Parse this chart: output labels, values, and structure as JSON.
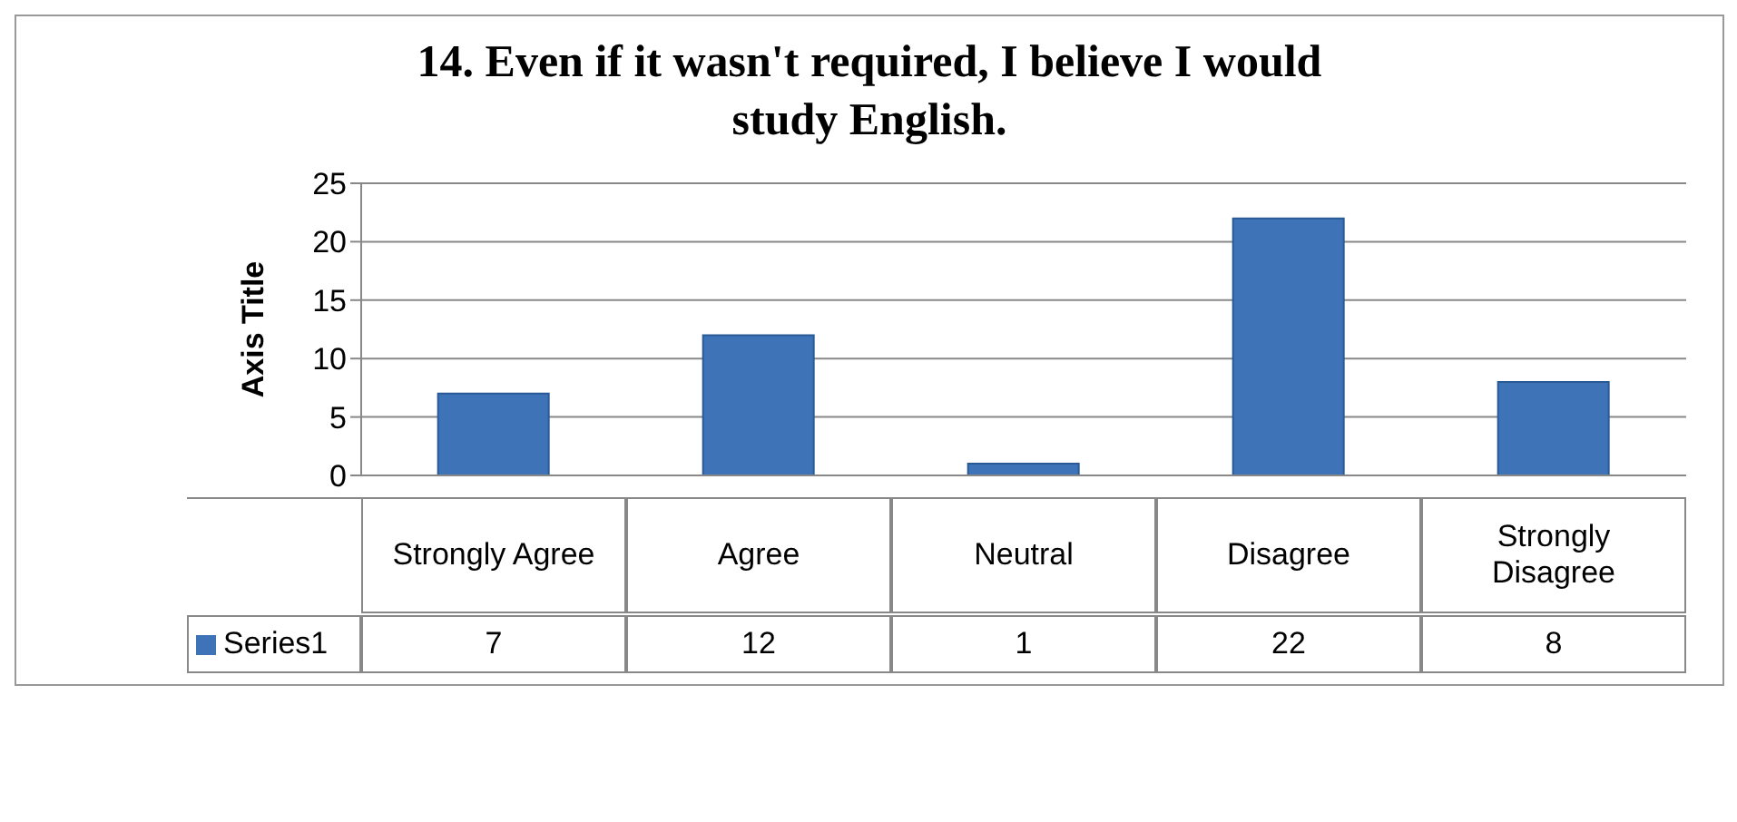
{
  "chart_data": {
    "type": "bar",
    "title": "14. Even if it wasn't required, I believe I would study English.",
    "ylabel": "Axis Title",
    "categories": [
      "Strongly Agree",
      "Agree",
      "Neutral",
      "Disagree",
      "Strongly Disagree"
    ],
    "series": [
      {
        "name": "Series1",
        "color": "#3f73b8",
        "values": [
          7,
          12,
          1,
          22,
          8
        ]
      }
    ],
    "ylim": [
      0,
      25
    ],
    "yticks": [
      0,
      5,
      10,
      15,
      20,
      25
    ],
    "grid": "y",
    "legend": "bottom",
    "data_labels": true
  }
}
